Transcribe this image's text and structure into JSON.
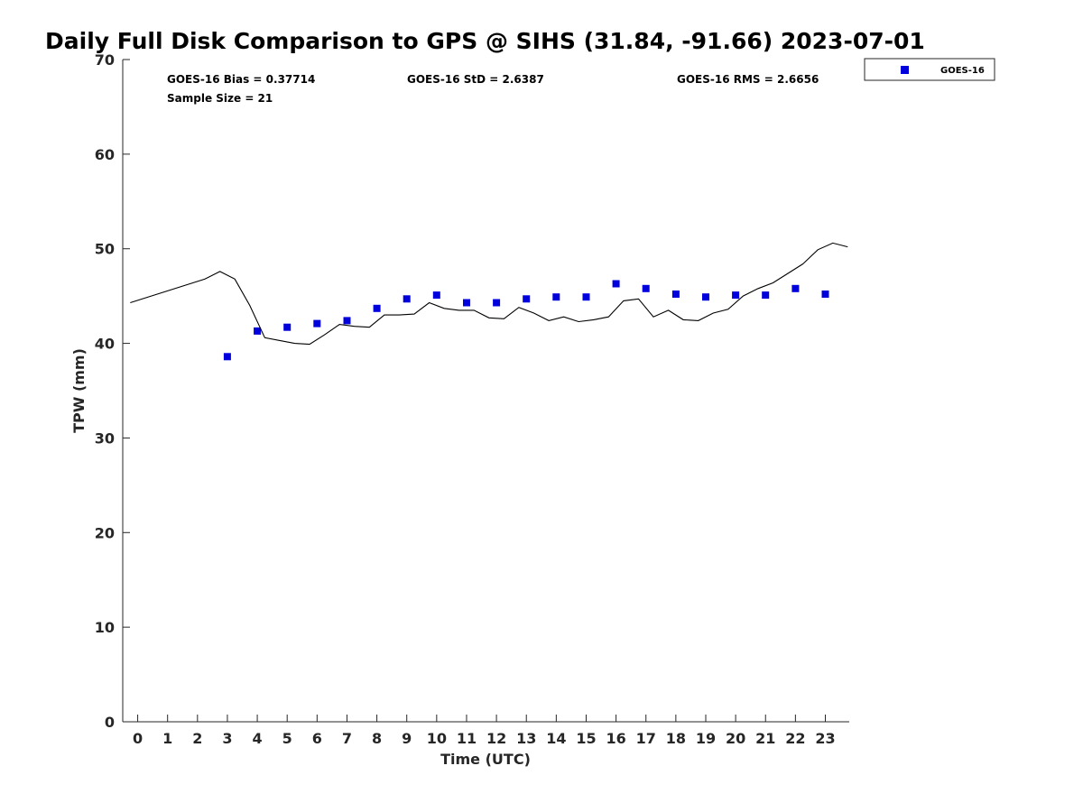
{
  "chart_data": {
    "type": "scatter",
    "title": "Daily Full Disk Comparison to GPS @ SIHS (31.84, -91.66) 2023-07-01",
    "xlabel": "Time (UTC)",
    "ylabel": "TPW (mm)",
    "xlim": [
      -0.5,
      23.8
    ],
    "ylim": [
      0,
      70
    ],
    "xticks": [
      "0",
      "1",
      "2",
      "3",
      "4",
      "5",
      "6",
      "7",
      "8",
      "9",
      "10",
      "11",
      "12",
      "13",
      "14",
      "15",
      "16",
      "17",
      "18",
      "19",
      "20",
      "21",
      "22",
      "23"
    ],
    "yticks": [
      "0",
      "10",
      "20",
      "30",
      "40",
      "50",
      "60",
      "70"
    ],
    "grid": false,
    "legend_position": "top-right",
    "stats": {
      "bias": "GOES-16 Bias = 0.37714",
      "std": "GOES-16 StD = 2.6387",
      "rms": "GOES-16 RMS = 2.6656",
      "sample": "Sample Size = 21"
    },
    "series": [
      {
        "name": "GOES-16",
        "kind": "scatter",
        "color": "#0000dd",
        "marker": "square",
        "x": [
          3,
          4,
          5,
          6,
          7,
          8,
          9,
          10,
          11,
          12,
          13,
          14,
          15,
          16,
          17,
          18,
          19,
          20,
          21,
          22,
          23
        ],
        "y": [
          38.6,
          41.3,
          41.7,
          42.1,
          42.4,
          43.7,
          44.7,
          45.1,
          44.3,
          44.3,
          44.7,
          44.9,
          44.9,
          46.3,
          45.8,
          45.2,
          44.9,
          45.1,
          45.1,
          45.8,
          45.2
        ]
      },
      {
        "kind": "line",
        "color": "#000000",
        "x": [
          -0.25,
          2.25,
          2.75,
          3.25,
          3.75,
          4.25,
          4.75,
          5.25,
          5.75,
          6.25,
          6.75,
          7.25,
          7.75,
          8.25,
          8.75,
          9.25,
          9.75,
          10.25,
          10.75,
          11.25,
          11.75,
          12.25,
          12.75,
          13.25,
          13.75,
          14.25,
          14.75,
          15.25,
          15.75,
          16.25,
          16.75,
          17.25,
          17.75,
          18.25,
          18.75,
          19.25,
          19.75,
          20.25,
          20.75,
          21.25,
          21.75,
          22.25,
          22.75,
          23.25,
          23.75
        ],
        "y": [
          44.3,
          46.8,
          47.6,
          46.8,
          44.0,
          40.6,
          40.3,
          40.0,
          39.9,
          40.9,
          42.0,
          41.8,
          41.7,
          43.0,
          43.0,
          43.1,
          44.3,
          43.7,
          43.5,
          43.5,
          42.7,
          42.6,
          43.8,
          43.2,
          42.4,
          42.8,
          42.3,
          42.5,
          42.8,
          44.5,
          44.7,
          42.8,
          43.5,
          42.5,
          42.4,
          43.2,
          43.6,
          45.0,
          45.8,
          46.4,
          47.4,
          48.4,
          49.9,
          50.6,
          50.2
        ]
      }
    ]
  }
}
